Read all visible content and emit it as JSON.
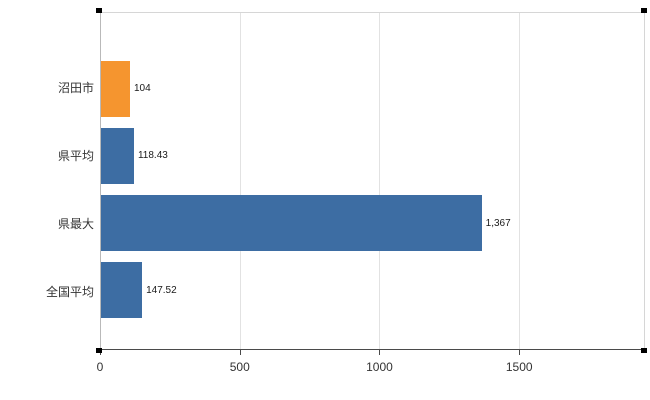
{
  "chart_data": {
    "type": "bar",
    "orientation": "horizontal",
    "title": "",
    "xlabel": "",
    "ylabel": "",
    "categories": [
      "沼田市",
      "県平均",
      "県最大",
      "全国平均"
    ],
    "values": [
      104,
      118.43,
      1367,
      147.52
    ],
    "value_labels": [
      "104",
      "118.43",
      "1,367",
      "147.52"
    ],
    "bar_colors": [
      "#f5952f",
      "#3d6da3",
      "#3d6da3",
      "#3d6da3"
    ],
    "xlim": [
      0,
      1950
    ],
    "x_ticks": [
      0,
      500,
      1000,
      1500
    ],
    "x_tick_labels": [
      "0",
      "500",
      "1000",
      "1500"
    ],
    "grid": true,
    "legend": false
  },
  "colors": {
    "orange": "#f5952f",
    "blue": "#3d6da3",
    "gridline": "#e2e2e2",
    "axis": "#4a4a4a",
    "plot_border": "#d6d6d6",
    "text": "#333333"
  }
}
